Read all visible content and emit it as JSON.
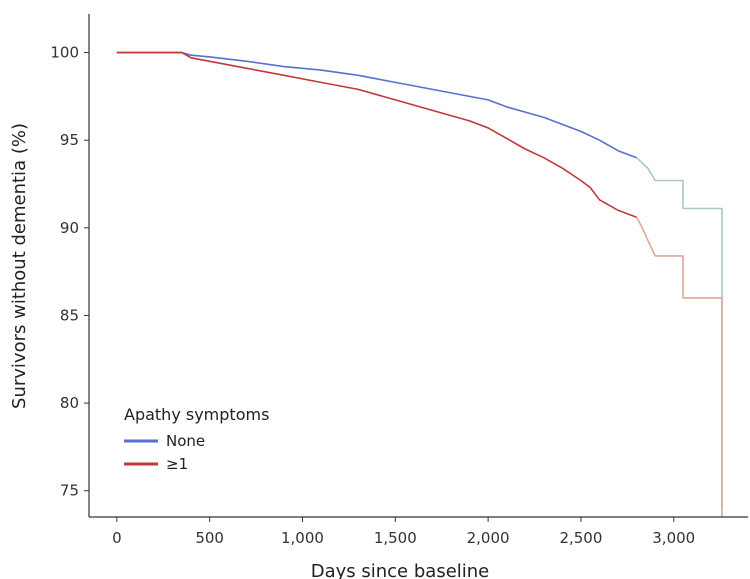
{
  "chart_data": {
    "type": "line",
    "title": "",
    "xlabel": "Days since baseline",
    "ylabel": "Survivors without dementia (%)",
    "xlim": [
      -150,
      3400
    ],
    "ylim": [
      73.5,
      102.2
    ],
    "x_ticks": [
      0,
      500,
      1000,
      1500,
      2000,
      2500,
      3000
    ],
    "x_tick_labels": [
      "0",
      "500",
      "1,000",
      "1,500",
      "2,000",
      "2,500",
      "3,000"
    ],
    "y_ticks": [
      75,
      80,
      85,
      90,
      95,
      100
    ],
    "y_tick_labels": [
      "75",
      "80",
      "85",
      "90",
      "95",
      "100"
    ],
    "grid": false,
    "legend": {
      "title": "Apathy symptoms",
      "placement": "bottom-left"
    },
    "series": [
      {
        "name": "None",
        "color": "#5a6fcf",
        "tail_color": "#a9c7c4",
        "points": [
          [
            0,
            100
          ],
          [
            350,
            100
          ],
          [
            400,
            99.85
          ],
          [
            500,
            99.75
          ],
          [
            700,
            99.5
          ],
          [
            900,
            99.2
          ],
          [
            1100,
            99.0
          ],
          [
            1300,
            98.7
          ],
          [
            1500,
            98.3
          ],
          [
            1700,
            97.9
          ],
          [
            1900,
            97.5
          ],
          [
            2000,
            97.3
          ],
          [
            2100,
            96.9
          ],
          [
            2200,
            96.6
          ],
          [
            2300,
            96.3
          ],
          [
            2400,
            95.9
          ],
          [
            2500,
            95.5
          ],
          [
            2600,
            95.0
          ],
          [
            2700,
            94.4
          ],
          [
            2800,
            94.0
          ],
          [
            2860,
            93.4
          ],
          [
            2900,
            92.7
          ],
          [
            3050,
            92.7
          ],
          [
            3050,
            91.1
          ],
          [
            3260,
            91.1
          ],
          [
            3260,
            74.0
          ]
        ],
        "tail_from_x": 2820
      },
      {
        "name": "≥1",
        "color": "#c0393b",
        "tail_color": "#d9a99c",
        "points": [
          [
            0,
            100
          ],
          [
            350,
            100
          ],
          [
            400,
            99.7
          ],
          [
            500,
            99.5
          ],
          [
            700,
            99.1
          ],
          [
            900,
            98.7
          ],
          [
            1100,
            98.3
          ],
          [
            1300,
            97.9
          ],
          [
            1500,
            97.3
          ],
          [
            1700,
            96.7
          ],
          [
            1900,
            96.1
          ],
          [
            2000,
            95.7
          ],
          [
            2100,
            95.1
          ],
          [
            2200,
            94.5
          ],
          [
            2300,
            94.0
          ],
          [
            2400,
            93.4
          ],
          [
            2500,
            92.7
          ],
          [
            2550,
            92.3
          ],
          [
            2600,
            91.6
          ],
          [
            2700,
            91.0
          ],
          [
            2800,
            90.6
          ],
          [
            2830,
            90.0
          ],
          [
            2860,
            89.3
          ],
          [
            2900,
            88.4
          ],
          [
            3050,
            88.4
          ],
          [
            3050,
            86.0
          ],
          [
            3260,
            86.0
          ],
          [
            3260,
            73.5
          ]
        ],
        "tail_from_x": 2810
      }
    ]
  }
}
